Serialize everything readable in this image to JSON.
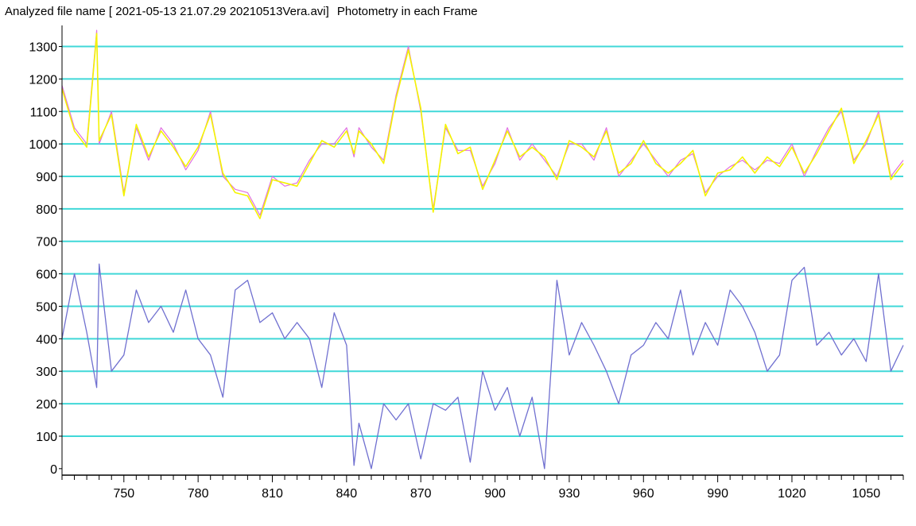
{
  "header": {
    "label": "Analyzed file name [ 2021-05-13 21.07.29 20210513Vera.avi]",
    "title": "Photometry in each Frame"
  },
  "colors": {
    "grid": "#40d8d8",
    "series_magenta": "#e070e0",
    "series_yellow": "#f4f400",
    "series_blue": "#7070d0",
    "axis": "#000000"
  },
  "chart_data": {
    "type": "line",
    "title": "Photometry in each Frame",
    "xlabel": "",
    "ylabel": "",
    "xlim": [
      725,
      1065
    ],
    "ylim": [
      -20,
      1360
    ],
    "xticks": [
      750,
      780,
      810,
      840,
      870,
      900,
      930,
      960,
      990,
      1020,
      1050
    ],
    "yticks": [
      0,
      100,
      200,
      300,
      400,
      500,
      600,
      700,
      800,
      900,
      1000,
      1100,
      1200,
      1300
    ],
    "grid": true,
    "x": [
      725,
      730,
      735,
      739,
      740,
      745,
      750,
      755,
      760,
      765,
      770,
      775,
      780,
      785,
      790,
      795,
      800,
      805,
      810,
      815,
      820,
      825,
      830,
      835,
      840,
      843,
      845,
      850,
      855,
      860,
      865,
      870,
      875,
      880,
      885,
      890,
      895,
      900,
      905,
      910,
      915,
      920,
      925,
      930,
      935,
      940,
      945,
      950,
      955,
      960,
      965,
      970,
      975,
      980,
      985,
      990,
      995,
      1000,
      1005,
      1010,
      1015,
      1020,
      1025,
      1030,
      1035,
      1040,
      1045,
      1050,
      1055,
      1060,
      1065
    ],
    "series": [
      {
        "values": [
          1180,
          1050,
          1000,
          1350,
          1000,
          1100,
          850,
          1050,
          950,
          1050,
          1000,
          920,
          980,
          1100,
          900,
          860,
          850,
          780,
          900,
          870,
          880,
          950,
          1000,
          1000,
          1050,
          960,
          1050,
          990,
          950,
          1150,
          1300,
          1100,
          800,
          1050,
          980,
          980,
          870,
          940,
          1050,
          950,
          1000,
          950,
          900,
          1000,
          1000,
          950,
          1050,
          900,
          950,
          1000,
          950,
          900,
          950,
          970,
          850,
          900,
          930,
          950,
          920,
          950,
          940,
          1000,
          900,
          980,
          1050,
          1100,
          950,
          1000,
          1100,
          900,
          950
        ]
      },
      {
        "values": [
          1170,
          1040,
          990,
          1340,
          1010,
          1090,
          840,
          1060,
          960,
          1040,
          990,
          930,
          990,
          1090,
          910,
          850,
          840,
          770,
          890,
          880,
          870,
          940,
          1010,
          990,
          1040,
          970,
          1040,
          1000,
          940,
          1140,
          1290,
          1110,
          790,
          1060,
          970,
          990,
          860,
          950,
          1040,
          960,
          990,
          960,
          890,
          1010,
          990,
          960,
          1040,
          910,
          940,
          1010,
          940,
          910,
          940,
          980,
          840,
          910,
          920,
          960,
          910,
          960,
          930,
          990,
          910,
          970,
          1040,
          1110,
          940,
          1010,
          1090,
          890,
          940
        ]
      },
      {
        "values": [
          400,
          600,
          420,
          250,
          630,
          300,
          350,
          550,
          450,
          500,
          420,
          550,
          400,
          350,
          220,
          550,
          580,
          450,
          480,
          400,
          450,
          400,
          250,
          480,
          380,
          10,
          140,
          0,
          200,
          150,
          200,
          30,
          200,
          180,
          220,
          20,
          300,
          180,
          250,
          100,
          220,
          0,
          580,
          350,
          450,
          380,
          300,
          200,
          350,
          380,
          450,
          400,
          550,
          350,
          450,
          380,
          550,
          500,
          420,
          300,
          350,
          580,
          620,
          380,
          420,
          350,
          400,
          330,
          600,
          300,
          380
        ]
      }
    ]
  }
}
